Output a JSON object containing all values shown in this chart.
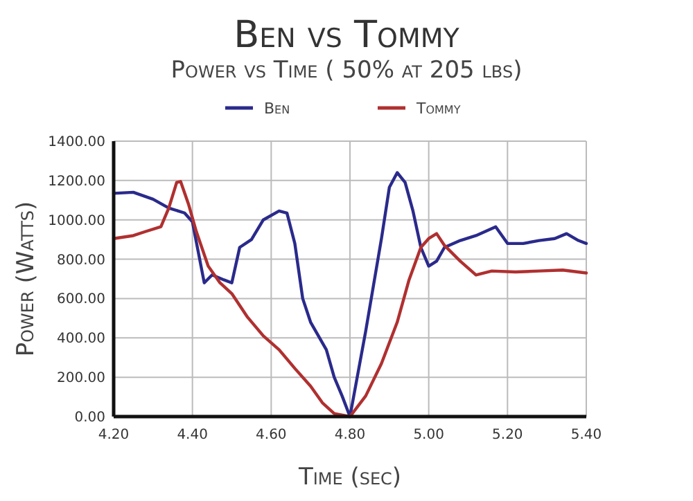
{
  "chart_data": {
    "type": "line",
    "title": "Ben vs Tommy",
    "subtitle": "Power vs Time ( 50% at 205 lbs)",
    "xlabel": "Time (sec)",
    "ylabel": "Power (Watts)",
    "xlim": [
      4.2,
      5.4
    ],
    "xticks": [
      {
        "value": 4.2,
        "label": "4.20"
      },
      {
        "value": 4.4,
        "label": "4.40"
      },
      {
        "value": 4.6,
        "label": "4.60"
      },
      {
        "value": 4.8,
        "label": "4.80"
      },
      {
        "value": 5.0,
        "label": "5.00"
      },
      {
        "value": 5.2,
        "label": "5.20"
      },
      {
        "value": 5.4,
        "label": "5.40"
      }
    ],
    "ylim": [
      0,
      1400
    ],
    "yticks": [
      {
        "value": 0,
        "label": "0.00"
      },
      {
        "value": 200,
        "label": "200.00"
      },
      {
        "value": 400,
        "label": "400.00"
      },
      {
        "value": 600,
        "label": "600.00"
      },
      {
        "value": 800,
        "label": "800.00"
      },
      {
        "value": 1000,
        "label": "1000.00"
      },
      {
        "value": 1200,
        "label": "1200.00"
      },
      {
        "value": 1400,
        "label": "1400.00"
      }
    ],
    "grid": true,
    "legend": "top",
    "marker": "none",
    "line_style": "solid",
    "series": [
      {
        "name": "Ben",
        "color": "#2a2a8c",
        "x": [
          4.2,
          4.25,
          4.3,
          4.34,
          4.38,
          4.4,
          4.43,
          4.45,
          4.48,
          4.5,
          4.52,
          4.55,
          4.58,
          4.62,
          4.64,
          4.66,
          4.68,
          4.7,
          4.74,
          4.76,
          4.78,
          4.8,
          4.84,
          4.88,
          4.9,
          4.92,
          4.94,
          4.96,
          4.98,
          5.0,
          5.02,
          5.04,
          5.08,
          5.12,
          5.17,
          5.2,
          5.24,
          5.28,
          5.32,
          5.35,
          5.38,
          5.4
        ],
        "values": [
          1135,
          1140,
          1105,
          1060,
          1035,
          990,
          680,
          720,
          695,
          680,
          860,
          900,
          1000,
          1045,
          1035,
          880,
          600,
          480,
          340,
          200,
          105,
          0,
          435,
          905,
          1165,
          1240,
          1190,
          1045,
          860,
          765,
          790,
          860,
          895,
          920,
          965,
          880,
          880,
          895,
          905,
          930,
          895,
          880
        ]
      },
      {
        "name": "Tommy",
        "color": "#b03030",
        "x": [
          4.2,
          4.25,
          4.28,
          4.32,
          4.34,
          4.36,
          4.37,
          4.39,
          4.41,
          4.44,
          4.47,
          4.5,
          4.54,
          4.58,
          4.62,
          4.66,
          4.7,
          4.73,
          4.76,
          4.8,
          4.84,
          4.88,
          4.92,
          4.95,
          4.98,
          5.0,
          5.02,
          5.04,
          5.08,
          5.12,
          5.16,
          5.22,
          5.28,
          5.34,
          5.4
        ],
        "values": [
          905,
          920,
          940,
          965,
          1060,
          1190,
          1195,
          1080,
          940,
          765,
          680,
          625,
          505,
          410,
          340,
          245,
          155,
          70,
          15,
          0,
          105,
          270,
          480,
          695,
          860,
          905,
          930,
          870,
          790,
          720,
          740,
          735,
          740,
          745,
          730
        ]
      }
    ]
  }
}
